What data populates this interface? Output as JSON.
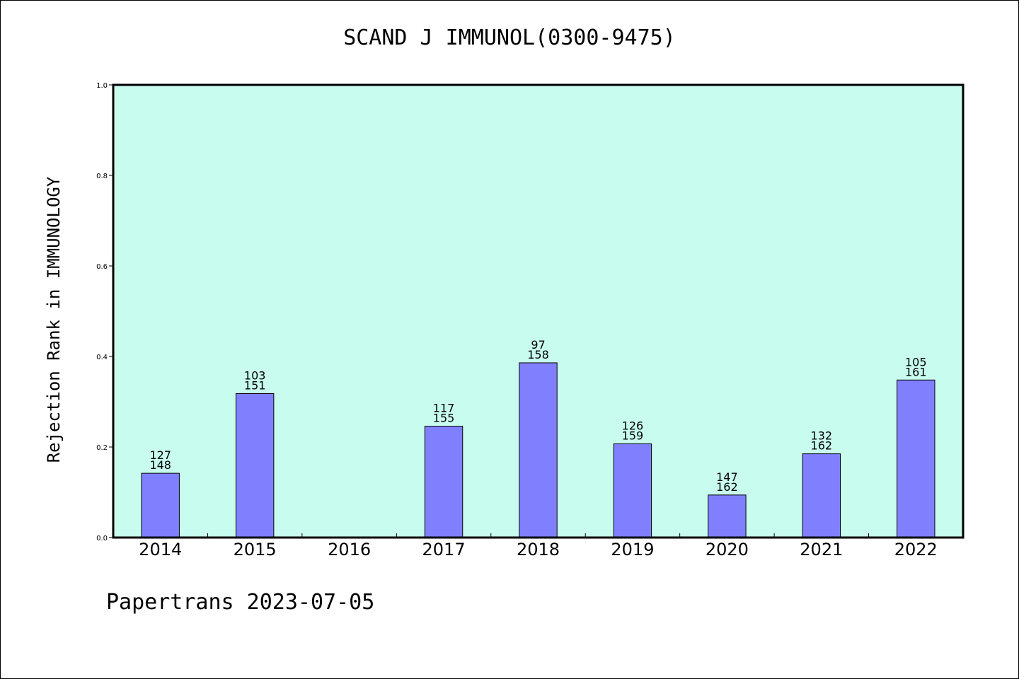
{
  "title": "SCAND J IMMUNOL(0300-9475)",
  "footer": "Papertrans 2023-07-05",
  "colors": {
    "plot_background": "#c8fcee",
    "bar_fill": "#8080ff",
    "bar_stroke": "#000000"
  },
  "chart_data": {
    "type": "bar",
    "title": "SCAND J IMMUNOL(0300-9475)",
    "xlabel": "",
    "ylabel": "Rejection Rank in IMMUNOLOGY",
    "ylim": [
      0,
      1.0
    ],
    "yticks": [
      "0.0",
      "0.2",
      "0.4",
      "0.6",
      "0.8",
      "1.0"
    ],
    "grid": false,
    "categories": [
      "2014",
      "2015",
      "2016",
      "2017",
      "2018",
      "2019",
      "2020",
      "2021",
      "2022"
    ],
    "values": [
      0.142,
      0.318,
      null,
      0.246,
      0.386,
      0.207,
      0.094,
      0.185,
      0.348
    ],
    "rank_labels": [
      "127",
      "103",
      "",
      "117",
      "97",
      "126",
      "147",
      "132",
      "105"
    ],
    "total_labels": [
      "148",
      "151",
      "",
      "155",
      "158",
      "159",
      "162",
      "162",
      "161"
    ]
  }
}
